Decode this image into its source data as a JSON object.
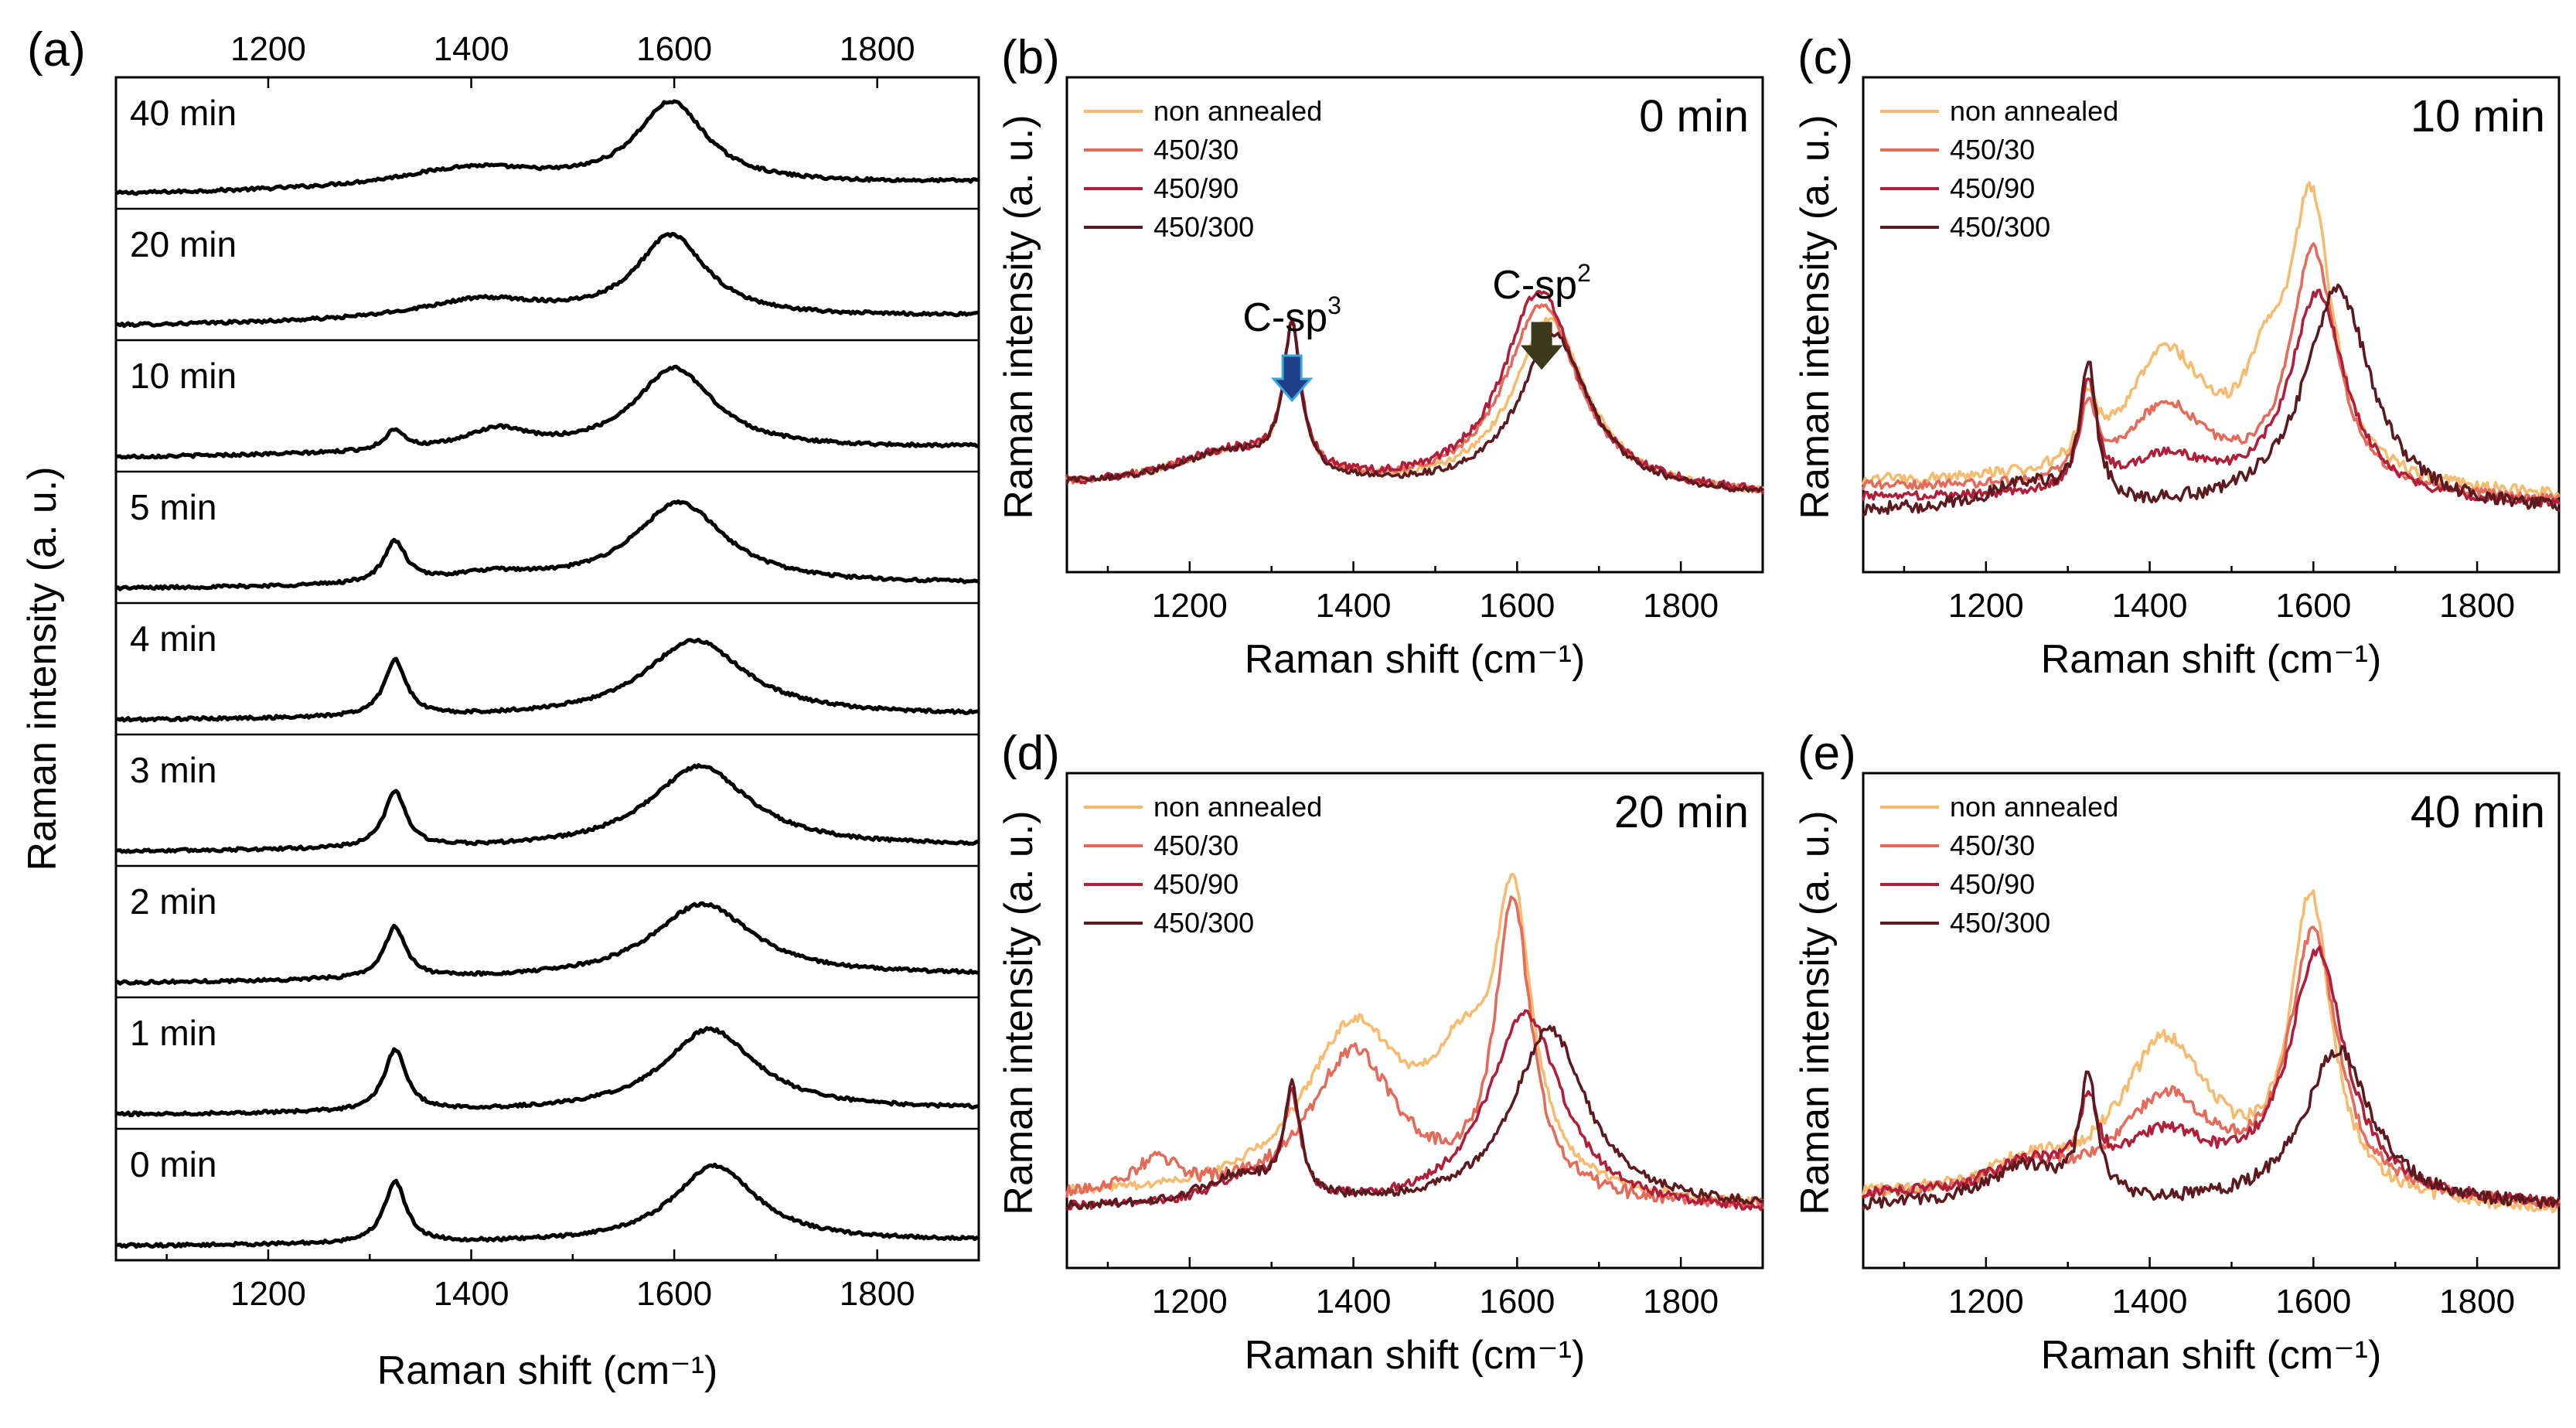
{
  "figure": {
    "colors": {
      "non_annealed": "#F6BB6E",
      "s450_30": "#E46A5A",
      "s450_90": "#B01E3A",
      "s450_300": "#5C1A1F",
      "black": "#000000",
      "sp3_arrow": "#1E3F8A",
      "sp3_arrow_edge": "#3AA6E0",
      "sp2_arrow": "#3B3A1C"
    }
  },
  "chart_data": [
    {
      "id": "a",
      "panel_label": "(a)",
      "type": "line",
      "stacked": true,
      "title": "",
      "xlabel": "Raman shift (cm⁻¹)",
      "ylabel": "Raman intensity (a. u.)",
      "xlim": [
        1050,
        1900
      ],
      "x_ticks": [
        1200,
        1400,
        1600,
        1800
      ],
      "x_tick_labels": [
        "1200",
        "1400",
        "1600",
        "1800"
      ],
      "top_axis_ticks": [
        1200,
        1400,
        1600,
        1800
      ],
      "top_axis_labels": [
        "1200",
        "1400",
        "1600",
        "1800"
      ],
      "series": [
        {
          "name": "40 min",
          "peaks": [
            {
              "x": 1400,
              "h": 0.2,
              "w": 90
            },
            {
              "x": 1597,
              "h": 0.8,
              "w": 42
            }
          ],
          "slope": 0.12
        },
        {
          "name": "20 min",
          "peaks": [
            {
              "x": 1410,
              "h": 0.2,
              "w": 80
            },
            {
              "x": 1597,
              "h": 0.8,
              "w": 42
            }
          ],
          "slope": 0.1
        },
        {
          "name": "10 min",
          "peaks": [
            {
              "x": 1325,
              "h": 0.2,
              "w": 12
            },
            {
              "x": 1425,
              "h": 0.2,
              "w": 40
            },
            {
              "x": 1600,
              "h": 0.8,
              "w": 48
            }
          ],
          "slope": 0.1
        },
        {
          "name": "5 min",
          "peaks": [
            {
              "x": 1325,
              "h": 0.4,
              "w": 13
            },
            {
              "x": 1420,
              "h": 0.1,
              "w": 60
            },
            {
              "x": 1605,
              "h": 0.8,
              "w": 55
            }
          ],
          "slope": 0.05
        },
        {
          "name": "4 min",
          "peaks": [
            {
              "x": 1325,
              "h": 0.55,
              "w": 13
            },
            {
              "x": 1620,
              "h": 0.75,
              "w": 60
            }
          ],
          "slope": 0.05
        },
        {
          "name": "3 min",
          "peaks": [
            {
              "x": 1325,
              "h": 0.55,
              "w": 13
            },
            {
              "x": 1625,
              "h": 0.8,
              "w": 60
            }
          ],
          "slope": 0.05
        },
        {
          "name": "2 min",
          "peaks": [
            {
              "x": 1325,
              "h": 0.5,
              "w": 13
            },
            {
              "x": 1628,
              "h": 0.72,
              "w": 60
            }
          ],
          "slope": 0.08
        },
        {
          "name": "1 min",
          "peaks": [
            {
              "x": 1325,
              "h": 0.6,
              "w": 13
            },
            {
              "x": 1635,
              "h": 0.8,
              "w": 55
            }
          ],
          "slope": 0.05
        },
        {
          "name": "0 min",
          "peaks": [
            {
              "x": 1325,
              "h": 0.6,
              "w": 13
            },
            {
              "x": 1640,
              "h": 0.75,
              "w": 50
            }
          ],
          "slope": 0.05
        }
      ]
    },
    {
      "id": "b",
      "panel_label": "(b)",
      "time_label": "0 min",
      "type": "line",
      "title": "",
      "xlabel": "Raman shift (cm⁻¹)",
      "ylabel": "Raman intensity (a. u.)",
      "xlim": [
        1050,
        1900
      ],
      "ylim": [
        0,
        1
      ],
      "x_ticks": [
        1200,
        1400,
        1600,
        1800
      ],
      "x_tick_labels": [
        "1200",
        "1400",
        "1600",
        "1800"
      ],
      "legend_position": "top-left",
      "annotations": [
        {
          "text": "C-sp",
          "superscript": "3",
          "x": 1325,
          "arrow": "sp3"
        },
        {
          "text": "C-sp",
          "superscript": "2",
          "x": 1630,
          "arrow": "sp2"
        }
      ],
      "series": [
        {
          "name": "non annealed",
          "color": "#F6BB6E",
          "baseline": 0.17,
          "slope": -0.02,
          "noise": 0.006,
          "peaks": [
            {
              "x": 1325,
              "h": 0.29,
              "w": 13
            },
            {
              "x": 1640,
              "h": 0.35,
              "w": 55
            },
            {
              "x": 1250,
              "h": 0.07,
              "w": 90
            }
          ]
        },
        {
          "name": "450/30",
          "color": "#E46A5A",
          "baseline": 0.17,
          "slope": -0.02,
          "noise": 0.006,
          "peaks": [
            {
              "x": 1325,
              "h": 0.29,
              "w": 13
            },
            {
              "x": 1630,
              "h": 0.38,
              "w": 55
            },
            {
              "x": 1250,
              "h": 0.07,
              "w": 90
            }
          ]
        },
        {
          "name": "450/90",
          "color": "#B01E3A",
          "baseline": 0.17,
          "slope": -0.02,
          "noise": 0.008,
          "peaks": [
            {
              "x": 1325,
              "h": 0.29,
              "w": 13
            },
            {
              "x": 1628,
              "h": 0.41,
              "w": 55
            },
            {
              "x": 1250,
              "h": 0.07,
              "w": 90
            }
          ]
        },
        {
          "name": "450/300",
          "color": "#5C1A1F",
          "baseline": 0.17,
          "slope": -0.02,
          "noise": 0.006,
          "peaks": [
            {
              "x": 1325,
              "h": 0.29,
              "w": 13
            },
            {
              "x": 1645,
              "h": 0.32,
              "w": 52
            },
            {
              "x": 1250,
              "h": 0.07,
              "w": 90
            }
          ]
        }
      ]
    },
    {
      "id": "c",
      "panel_label": "(c)",
      "time_label": "10 min",
      "type": "line",
      "title": "",
      "xlabel": "Raman shift (cm⁻¹)",
      "ylabel": "Raman intensity (a. u.)",
      "xlim": [
        1050,
        1900
      ],
      "ylim": [
        0,
        1
      ],
      "x_ticks": [
        1200,
        1400,
        1600,
        1800
      ],
      "x_tick_labels": [
        "1200",
        "1400",
        "1600",
        "1800"
      ],
      "legend_position": "top-left",
      "series": [
        {
          "name": "non annealed",
          "color": "#F6BB6E",
          "baseline": 0.18,
          "slope": -0.03,
          "noise": 0.01,
          "peaks": [
            {
              "x": 1325,
              "h": 0.12,
              "w": 12
            },
            {
              "x": 1420,
              "h": 0.26,
              "w": 60
            },
            {
              "x": 1597,
              "h": 0.56,
              "w": 32
            },
            {
              "x": 1540,
              "h": 0.15,
              "w": 30
            }
          ]
        },
        {
          "name": "450/30",
          "color": "#E46A5A",
          "baseline": 0.17,
          "slope": -0.03,
          "noise": 0.008,
          "peaks": [
            {
              "x": 1325,
              "h": 0.14,
              "w": 12
            },
            {
              "x": 1420,
              "h": 0.17,
              "w": 60
            },
            {
              "x": 1600,
              "h": 0.49,
              "w": 34
            }
          ]
        },
        {
          "name": "450/90",
          "color": "#B01E3A",
          "baseline": 0.15,
          "slope": -0.02,
          "noise": 0.008,
          "peaks": [
            {
              "x": 1325,
              "h": 0.22,
              "w": 12
            },
            {
              "x": 1420,
              "h": 0.08,
              "w": 60
            },
            {
              "x": 1605,
              "h": 0.42,
              "w": 42
            }
          ]
        },
        {
          "name": "450/300",
          "color": "#5C1A1F",
          "baseline": 0.12,
          "slope": 0.0,
          "noise": 0.012,
          "peaks": [
            {
              "x": 1325,
              "h": 0.28,
              "w": 12
            },
            {
              "x": 1630,
              "h": 0.45,
              "w": 50
            },
            {
              "x": 1250,
              "h": 0.05,
              "w": 60
            }
          ]
        }
      ]
    },
    {
      "id": "d",
      "panel_label": "(d)",
      "time_label": "20 min",
      "type": "line",
      "title": "",
      "xlabel": "Raman shift (cm⁻¹)",
      "ylabel": "Raman intensity (a. u.)",
      "xlim": [
        1050,
        1900
      ],
      "ylim": [
        0,
        1
      ],
      "x_ticks": [
        1200,
        1400,
        1600,
        1800
      ],
      "x_tick_labels": [
        "1200",
        "1400",
        "1600",
        "1800"
      ],
      "legend_position": "top-left",
      "series": [
        {
          "name": "non annealed",
          "color": "#F6BB6E",
          "baseline": 0.14,
          "slope": -0.02,
          "noise": 0.008,
          "peaks": [
            {
              "x": 1400,
              "h": 0.34,
              "w": 75
            },
            {
              "x": 1530,
              "h": 0.2,
              "w": 45
            },
            {
              "x": 1595,
              "h": 0.56,
              "w": 28
            }
          ]
        },
        {
          "name": "450/30",
          "color": "#E46A5A",
          "baseline": 0.14,
          "slope": -0.02,
          "noise": 0.012,
          "peaks": [
            {
              "x": 1400,
              "h": 0.3,
              "w": 65
            },
            {
              "x": 1595,
              "h": 0.6,
              "w": 26
            },
            {
              "x": 1160,
              "h": 0.07,
              "w": 30
            }
          ]
        },
        {
          "name": "450/90",
          "color": "#B01E3A",
          "baseline": 0.12,
          "slope": -0.01,
          "noise": 0.008,
          "peaks": [
            {
              "x": 1325,
              "h": 0.2,
              "w": 12
            },
            {
              "x": 1610,
              "h": 0.4,
              "w": 55
            },
            {
              "x": 1270,
              "h": 0.06,
              "w": 50
            }
          ]
        },
        {
          "name": "450/300",
          "color": "#5C1A1F",
          "baseline": 0.12,
          "slope": 0.0,
          "noise": 0.008,
          "peaks": [
            {
              "x": 1325,
              "h": 0.22,
              "w": 12
            },
            {
              "x": 1640,
              "h": 0.36,
              "w": 55
            },
            {
              "x": 1260,
              "h": 0.06,
              "w": 55
            }
          ]
        }
      ]
    },
    {
      "id": "e",
      "panel_label": "(e)",
      "time_label": "40 min",
      "type": "line",
      "title": "",
      "xlabel": "Raman shift (cm⁻¹)",
      "ylabel": "Raman intensity (a. u.)",
      "xlim": [
        1050,
        1900
      ],
      "ylim": [
        0,
        1
      ],
      "x_ticks": [
        1200,
        1400,
        1600,
        1800
      ],
      "x_tick_labels": [
        "1200",
        "1400",
        "1600",
        "1800"
      ],
      "legend_position": "top-left",
      "series": [
        {
          "name": "non annealed",
          "color": "#F6BB6E",
          "baseline": 0.14,
          "slope": -0.03,
          "noise": 0.012,
          "peaks": [
            {
              "x": 1420,
              "h": 0.32,
              "w": 70
            },
            {
              "x": 1597,
              "h": 0.6,
              "w": 30
            },
            {
              "x": 1250,
              "h": 0.05,
              "w": 60
            }
          ]
        },
        {
          "name": "450/30",
          "color": "#E46A5A",
          "baseline": 0.14,
          "slope": -0.02,
          "noise": 0.01,
          "peaks": [
            {
              "x": 1420,
              "h": 0.2,
              "w": 70
            },
            {
              "x": 1600,
              "h": 0.53,
              "w": 36
            },
            {
              "x": 1250,
              "h": 0.05,
              "w": 60
            }
          ]
        },
        {
          "name": "450/90",
          "color": "#B01E3A",
          "baseline": 0.14,
          "slope": -0.02,
          "noise": 0.01,
          "peaks": [
            {
              "x": 1325,
              "h": 0.15,
              "w": 13
            },
            {
              "x": 1420,
              "h": 0.12,
              "w": 70
            },
            {
              "x": 1605,
              "h": 0.5,
              "w": 42
            },
            {
              "x": 1250,
              "h": 0.06,
              "w": 60
            }
          ]
        },
        {
          "name": "450/300",
          "color": "#5C1A1F",
          "baseline": 0.12,
          "slope": 0.0,
          "noise": 0.012,
          "peaks": [
            {
              "x": 1325,
              "h": 0.24,
              "w": 12
            },
            {
              "x": 1630,
              "h": 0.32,
              "w": 50
            },
            {
              "x": 1250,
              "h": 0.08,
              "w": 60
            }
          ]
        }
      ]
    }
  ]
}
